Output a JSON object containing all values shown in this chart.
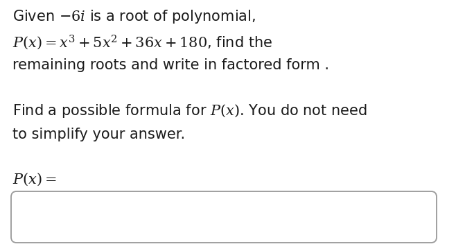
{
  "background_color": "#ffffff",
  "text_color": "#1a1a1a",
  "line1": "Given $-6i$ is a root of polynomial,",
  "line2": "$P(x) = x^3 + 5x^2 + 36x + 180$, find the",
  "line3": "remaining roots and write in factored form .",
  "line4": "Find a possible formula for $P(x)$. You do not need",
  "line5": "to simplify your answer.",
  "line6": "$P(x) =$",
  "font_size_main": 15.0,
  "fig_width": 6.58,
  "fig_height": 3.62,
  "dpi": 100
}
